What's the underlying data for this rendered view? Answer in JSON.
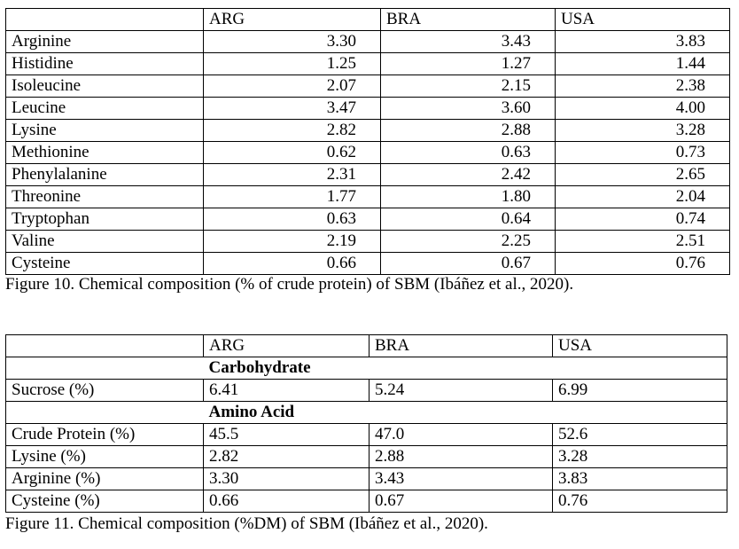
{
  "table1": {
    "headers": [
      "",
      "ARG",
      "BRA",
      "USA"
    ],
    "rows": [
      [
        "Arginine",
        "3.30",
        "3.43",
        "3.83"
      ],
      [
        "Histidine",
        "1.25",
        "1.27",
        "1.44"
      ],
      [
        "Isoleucine",
        "2.07",
        "2.15",
        "2.38"
      ],
      [
        "Leucine",
        "3.47",
        "3.60",
        "4.00"
      ],
      [
        "Lysine",
        "2.82",
        "2.88",
        "3.28"
      ],
      [
        "Methionine",
        "0.62",
        "0.63",
        "0.73"
      ],
      [
        "Phenylalanine",
        "2.31",
        "2.42",
        "2.65"
      ],
      [
        "Threonine",
        "1.77",
        "1.80",
        "2.04"
      ],
      [
        "Tryptophan",
        "0.63",
        "0.64",
        "0.74"
      ],
      [
        "Valine",
        "2.19",
        "2.25",
        "2.51"
      ],
      [
        "Cysteine",
        "0.66",
        "0.67",
        "0.76"
      ]
    ],
    "caption": "Figure 10. Chemical composition (% of crude protein) of SBM (Ibáñez et al., 2020)."
  },
  "table2": {
    "headers": [
      "",
      "ARG",
      "BRA",
      "USA"
    ],
    "section_carbohydrate": "Carbohydrate",
    "carb_rows": [
      [
        "Sucrose (%)",
        "6.41",
        "5.24",
        "6.99"
      ]
    ],
    "section_amino": "Amino Acid",
    "amino_rows": [
      [
        "Crude Protein (%)",
        "45.5",
        "47.0",
        "52.6"
      ],
      [
        "Lysine (%)",
        "2.82",
        "2.88",
        "3.28"
      ],
      [
        "Arginine (%)",
        "3.30",
        "3.43",
        "3.83"
      ],
      [
        "Cysteine (%)",
        "0.66",
        "0.67",
        "0.76"
      ]
    ],
    "caption": "Figure 11. Chemical composition (%DM) of SBM (Ibáñez et al., 2020)."
  }
}
